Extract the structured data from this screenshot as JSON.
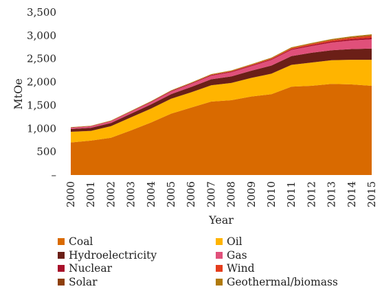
{
  "chart_data": {
    "type": "area",
    "stacked": true,
    "title": "",
    "xlabel": "Year",
    "ylabel": "MtOe",
    "ylim": [
      0,
      3500
    ],
    "yticks": [
      0,
      500,
      1000,
      1500,
      2000,
      2500,
      3000,
      3500
    ],
    "ytick_labels": [
      "–",
      "500",
      "1,000",
      "1,500",
      "2,000",
      "2,500",
      "3,000",
      "3,500"
    ],
    "grid": false,
    "legend_position": "bottom",
    "x": [
      "2000",
      "2001",
      "2002",
      "2003",
      "2004",
      "2005",
      "2006",
      "2007",
      "2008",
      "2009",
      "2010",
      "2011",
      "2012",
      "2013",
      "2014",
      "2015"
    ],
    "series": [
      {
        "name": "Coal",
        "color": "#d96a00",
        "values": [
          700,
          740,
          800,
          960,
          1130,
          1320,
          1450,
          1580,
          1610,
          1690,
          1740,
          1900,
          1920,
          1960,
          1950,
          1920
        ]
      },
      {
        "name": "Oil",
        "color": "#ffb400",
        "values": [
          230,
          210,
          250,
          280,
          300,
          320,
          330,
          350,
          370,
          400,
          440,
          470,
          500,
          510,
          530,
          560
        ]
      },
      {
        "name": "Hydroelectricity",
        "color": "#6b1f17",
        "values": [
          60,
          65,
          70,
          80,
          90,
          100,
          115,
          130,
          140,
          155,
          175,
          190,
          210,
          215,
          230,
          240
        ]
      },
      {
        "name": "Gas",
        "color": "#e0507a",
        "values": [
          25,
          30,
          35,
          40,
          45,
          55,
          65,
          75,
          90,
          95,
          120,
          130,
          145,
          165,
          185,
          200
        ]
      },
      {
        "name": "Nuclear",
        "color": "#a8102a",
        "values": [
          5,
          5,
          6,
          8,
          10,
          12,
          13,
          15,
          16,
          17,
          18,
          20,
          22,
          25,
          30,
          35
        ]
      },
      {
        "name": "Wind",
        "color": "#e53d1c",
        "values": [
          1,
          1,
          2,
          2,
          3,
          4,
          5,
          7,
          10,
          12,
          15,
          18,
          22,
          26,
          30,
          38
        ]
      },
      {
        "name": "Solar",
        "color": "#8e3f0b",
        "values": [
          1,
          1,
          1,
          1,
          1,
          1,
          1,
          1,
          1,
          1,
          2,
          3,
          4,
          6,
          10,
          12
        ]
      },
      {
        "name": "Geothermal/biomass",
        "color": "#b07a0c",
        "values": [
          8,
          8,
          9,
          10,
          10,
          11,
          12,
          13,
          14,
          15,
          16,
          17,
          18,
          19,
          20,
          22
        ]
      }
    ]
  }
}
